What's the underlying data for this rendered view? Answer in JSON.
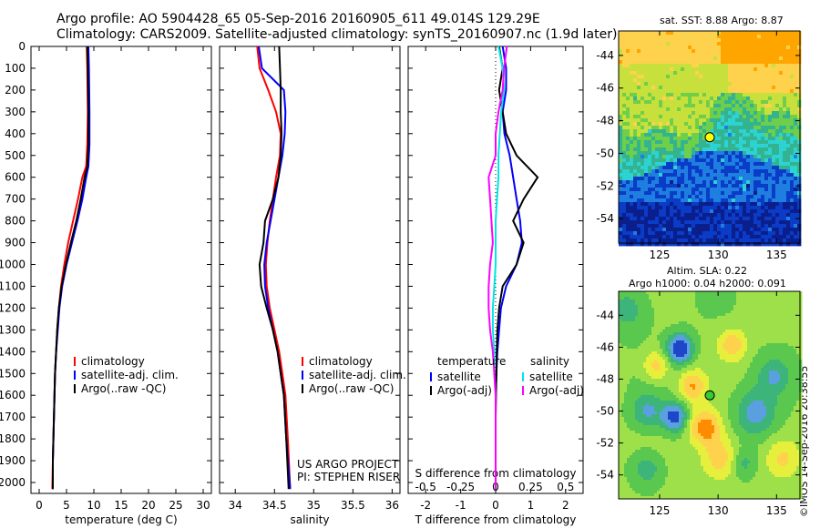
{
  "header": {
    "line1": "Argo profile: AO 5904428_65 05-Sep-2016 20160905_611 49.014S 129.29E",
    "line2": "Climatology: CARS2009. Satellite-adjusted climatology: synTS_20160907.nc (1.9d later)"
  },
  "credit": "©IMOS 14-Sep-2016 20:38:55",
  "colors": {
    "climatology": "#ff0000",
    "satellite": "#0000ff",
    "argo": "#000000",
    "sat_salinity": "#00e5e5",
    "argo_salinity": "#ff00ff"
  },
  "chart_data": [
    {
      "type": "line",
      "xlabel": "temperature (deg C)",
      "ylabel": "",
      "xlim": [
        -1.5,
        31.5
      ],
      "ylim": [
        2050,
        0
      ],
      "xticks": [
        0,
        5,
        10,
        15,
        20,
        25,
        30
      ],
      "yticks": [
        0,
        100,
        200,
        300,
        400,
        500,
        600,
        700,
        800,
        900,
        1000,
        1100,
        1200,
        1300,
        1400,
        1500,
        1600,
        1700,
        1800,
        1900,
        2000
      ],
      "legend": [
        "climatology",
        "satellite-adj. clim.",
        "Argo(..raw -QC)"
      ],
      "legend_position": "lower-right",
      "series": [
        {
          "name": "climatology",
          "color": "#ff0000",
          "x": [
            8.7,
            8.8,
            8.9,
            8.8,
            8.6,
            7.9,
            7.1,
            6.2,
            5.3,
            4.6,
            4.0,
            3.6,
            3.3,
            3.1,
            2.9,
            2.8,
            2.7,
            2.6,
            2.5,
            2.4
          ],
          "y": [
            0,
            100,
            300,
            450,
            550,
            600,
            700,
            800,
            900,
            1000,
            1100,
            1200,
            1300,
            1400,
            1500,
            1600,
            1700,
            1800,
            1900,
            2030
          ]
        },
        {
          "name": "satellite-adj. clim.",
          "color": "#0000ff",
          "x": [
            9.0,
            9.1,
            9.2,
            9.2,
            9.0,
            8.6,
            7.9,
            7.0,
            6.0,
            5.0,
            4.2,
            3.7,
            3.4,
            3.1,
            2.9,
            2.8,
            2.7,
            2.6,
            2.5,
            2.5
          ],
          "y": [
            0,
            100,
            300,
            450,
            550,
            600,
            700,
            800,
            900,
            1000,
            1100,
            1200,
            1300,
            1400,
            1500,
            1600,
            1700,
            1800,
            1900,
            2030
          ]
        },
        {
          "name": "Argo(..raw -QC)",
          "color": "#000000",
          "x": [
            8.8,
            8.9,
            9.0,
            9.0,
            8.8,
            8.3,
            7.6,
            6.8,
            5.8,
            4.9,
            4.1,
            3.6,
            3.3,
            3.1,
            2.9,
            2.8,
            2.7,
            2.6,
            2.5,
            2.5
          ],
          "y": [
            0,
            100,
            300,
            450,
            550,
            600,
            700,
            800,
            900,
            1000,
            1100,
            1200,
            1300,
            1400,
            1500,
            1600,
            1700,
            1800,
            1900,
            2030
          ]
        }
      ]
    },
    {
      "type": "line",
      "xlabel": "salinity",
      "ylabel": "",
      "xlim": [
        33.8,
        36.1
      ],
      "ylim": [
        2050,
        0
      ],
      "xticks": [
        34,
        34.5,
        35,
        35.5,
        36
      ],
      "legend": [
        "climatology",
        "satellite-adj. clim.",
        "Argo(..raw -QC)"
      ],
      "legend_position": "lower-right",
      "annotation": [
        "US ARGO PROJECT",
        "PI: STEPHEN RISER"
      ],
      "series": [
        {
          "name": "climatology",
          "color": "#ff0000",
          "x": [
            34.28,
            34.31,
            34.42,
            34.52,
            34.58,
            34.57,
            34.52,
            34.48,
            34.44,
            34.41,
            34.39,
            34.4,
            34.44,
            34.5,
            34.56,
            34.6,
            34.64,
            34.67,
            34.7
          ],
          "y": [
            0,
            100,
            200,
            300,
            400,
            500,
            600,
            700,
            800,
            900,
            1000,
            1100,
            1200,
            1300,
            1400,
            1500,
            1600,
            1800,
            2030
          ]
        },
        {
          "name": "satellite-adj. clim.",
          "color": "#0000ff",
          "x": [
            34.3,
            34.34,
            34.62,
            34.64,
            34.63,
            34.6,
            34.55,
            34.5,
            34.45,
            34.4,
            34.37,
            34.38,
            34.42,
            34.48,
            34.54,
            34.58,
            34.62,
            34.65,
            34.7
          ],
          "y": [
            0,
            100,
            200,
            300,
            400,
            500,
            600,
            700,
            800,
            900,
            1000,
            1100,
            1200,
            1300,
            1400,
            1500,
            1600,
            1800,
            2030
          ]
        },
        {
          "name": "Argo(..raw -QC)",
          "color": "#000000",
          "x": [
            34.56,
            34.57,
            34.58,
            34.58,
            34.59,
            34.58,
            34.55,
            34.48,
            34.38,
            34.36,
            34.31,
            34.33,
            34.4,
            34.48,
            34.54,
            34.58,
            34.62,
            34.65,
            34.68
          ],
          "y": [
            0,
            100,
            200,
            300,
            400,
            500,
            600,
            700,
            800,
            900,
            1000,
            1100,
            1200,
            1300,
            1400,
            1500,
            1600,
            1800,
            2030
          ]
        }
      ]
    },
    {
      "type": "line",
      "xlabel": "T difference from climatology",
      "xlabel_top": "S difference from climatology",
      "ylabel": "",
      "xlim": [
        -2.5,
        2.5
      ],
      "ylim": [
        2050,
        0
      ],
      "xticks": [
        -2,
        -1,
        0,
        1,
        2
      ],
      "s_ticks": [
        {
          "value": -0.5,
          "label": "-0.5"
        },
        {
          "value": -0.25,
          "label": "-0.25"
        },
        {
          "value": 0,
          "label": "0"
        },
        {
          "value": 0.25,
          "label": "0.25"
        },
        {
          "value": 0.5,
          "label": "0.5"
        }
      ],
      "s_to_t_factor": 4,
      "legend": {
        "temperature_title": "temperature",
        "salinity_title": "salinity",
        "items": [
          "satellite",
          "Argo(-adj)",
          "satellite",
          "Argo(-adj)"
        ]
      },
      "legend_position": "lower-center",
      "series": [
        {
          "name": "satellite",
          "quantity": "temperature",
          "color": "#0000ff",
          "x": [
            0.2,
            0.3,
            0.3,
            0.2,
            0.25,
            0.4,
            0.5,
            0.6,
            0.7,
            0.75,
            0.6,
            0.3,
            0.15,
            0.1,
            0.05,
            0.02,
            0.0,
            0.0,
            0.0,
            0.0
          ],
          "y": [
            0,
            100,
            200,
            300,
            400,
            500,
            600,
            700,
            800,
            900,
            1000,
            1100,
            1200,
            1300,
            1400,
            1500,
            1600,
            1700,
            1800,
            2030
          ]
        },
        {
          "name": "Argo(-adj)",
          "quantity": "temperature",
          "color": "#000000",
          "x": [
            0.1,
            0.2,
            0.1,
            0.2,
            0.3,
            0.6,
            1.2,
            0.8,
            0.5,
            0.8,
            0.6,
            0.2,
            0.1,
            0.05,
            0.03,
            0.02,
            0.01,
            0.0,
            0.0,
            0.0
          ],
          "y": [
            0,
            100,
            200,
            300,
            400,
            500,
            600,
            700,
            800,
            900,
            1000,
            1100,
            1200,
            1300,
            1400,
            1500,
            1600,
            1700,
            1800,
            2030
          ]
        },
        {
          "name": "satellite",
          "quantity": "salinity",
          "color": "#00e5e5",
          "x": [
            0.02,
            0.05,
            0.06,
            0.04,
            0.03,
            0.02,
            0.02,
            0.01,
            0.0,
            0.0,
            0.0,
            -0.01,
            -0.02,
            -0.02,
            -0.01,
            -0.01,
            0.0,
            0.0,
            0.0,
            0.0
          ],
          "y": [
            0,
            100,
            200,
            300,
            400,
            500,
            600,
            700,
            800,
            900,
            1000,
            1100,
            1200,
            1300,
            1400,
            1500,
            1600,
            1700,
            1800,
            2030
          ]
        },
        {
          "name": "Argo(-adj)",
          "quantity": "salinity",
          "color": "#ff00ff",
          "x": [
            0.08,
            0.06,
            0.05,
            0.02,
            0.0,
            0.0,
            -0.05,
            -0.04,
            -0.03,
            -0.02,
            -0.04,
            -0.05,
            -0.05,
            -0.04,
            -0.02,
            -0.01,
            0.0,
            0.0,
            0.0,
            0.0
          ],
          "y": [
            0,
            100,
            200,
            300,
            400,
            500,
            600,
            700,
            800,
            900,
            1000,
            1100,
            1200,
            1300,
            1400,
            1500,
            1600,
            1700,
            1800,
            2030
          ]
        }
      ]
    },
    {
      "type": "heatmap",
      "title": "sat. SST: 8.88 Argo: 8.87",
      "xlim": [
        121.5,
        137
      ],
      "ylim": [
        -55.5,
        -42.5
      ],
      "xticks": [
        125,
        130,
        135
      ],
      "yticks": [
        -44,
        -46,
        -48,
        -50,
        -52,
        -54
      ],
      "marker": {
        "lon": 129.29,
        "lat": -49.014,
        "color": "#ffff00"
      },
      "colors": [
        "#ffa500",
        "#ffd24d",
        "#c8e03c",
        "#6ecf4a",
        "#33b38f",
        "#2dd2d2",
        "#1e7fe0",
        "#0a3cc8",
        "#0a1e8c"
      ]
    },
    {
      "type": "heatmap",
      "title": "Altim. SLA: 0.22",
      "subtitle": "Argo h1000: 0.04 h2000: 0.091",
      "xlim": [
        121.5,
        137
      ],
      "ylim": [
        -55.5,
        -42.5
      ],
      "xticks": [
        125,
        130,
        135
      ],
      "yticks": [
        -44,
        -46,
        -48,
        -50,
        -52,
        -54
      ],
      "marker": {
        "lon": 129.29,
        "lat": -49.014,
        "color": "#33cc33"
      },
      "colors": [
        "#ff8c00",
        "#ffd24d",
        "#e6f03c",
        "#9ee04a",
        "#5ac84f",
        "#3db47a",
        "#5aa0e0",
        "#1e46c8"
      ]
    }
  ]
}
